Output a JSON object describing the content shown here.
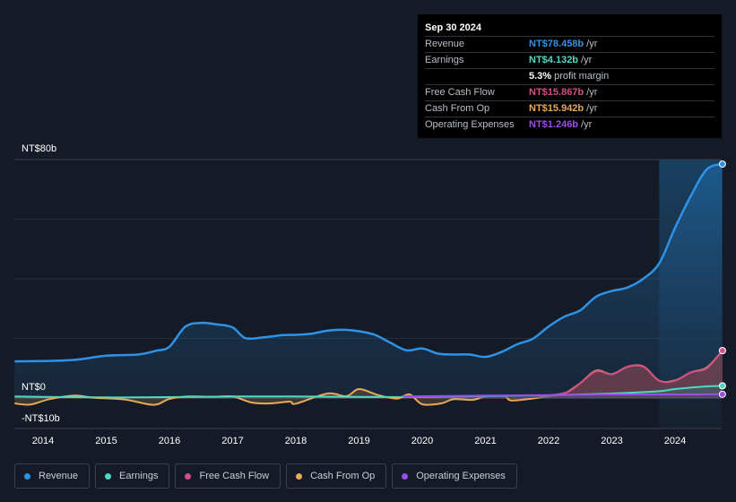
{
  "tooltip": {
    "date": "Sep 30 2024",
    "rows": [
      {
        "label": "Revenue",
        "value": "NT$78.458b",
        "unit": "/yr",
        "color": "#2e93e6"
      },
      {
        "label": "Earnings",
        "value": "NT$4.132b",
        "unit": "/yr",
        "color": "#4fd9c4"
      },
      {
        "label": "",
        "value": "5.3%",
        "unit": "profit margin",
        "color": "#ffffff"
      },
      {
        "label": "Free Cash Flow",
        "value": "NT$15.867b",
        "unit": "/yr",
        "color": "#d44f86"
      },
      {
        "label": "Cash From Op",
        "value": "NT$15.942b",
        "unit": "/yr",
        "color": "#e9a85a"
      },
      {
        "label": "Operating Expenses",
        "value": "NT$1.246b",
        "unit": "/yr",
        "color": "#9b4de8"
      }
    ]
  },
  "legend": [
    {
      "label": "Revenue",
      "color": "#2e93e6"
    },
    {
      "label": "Earnings",
      "color": "#4fd9c4"
    },
    {
      "label": "Free Cash Flow",
      "color": "#d44f86"
    },
    {
      "label": "Cash From Op",
      "color": "#e9a85a"
    },
    {
      "label": "Operating Expenses",
      "color": "#9b4de8"
    }
  ],
  "chart_data": {
    "type": "area",
    "title": "",
    "xlabel": "",
    "ylabel": "",
    "x_ticks": [
      "2014",
      "2015",
      "2016",
      "2017",
      "2018",
      "2019",
      "2020",
      "2021",
      "2022",
      "2023",
      "2024"
    ],
    "y_ticks": [
      {
        "value": 80,
        "label": "NT$80b"
      },
      {
        "value": 0,
        "label": "NT$0"
      },
      {
        "value": -10,
        "label": "-NT$10b"
      }
    ],
    "xlim": [
      2013.55,
      2024.75
    ],
    "ylim": [
      -10,
      80
    ],
    "forecast_start": 2023.75,
    "series": [
      {
        "name": "Revenue",
        "color": "#2e93e6",
        "points": [
          [
            2013.55,
            12.3
          ],
          [
            2014.0,
            12.4
          ],
          [
            2014.5,
            12.8
          ],
          [
            2015.0,
            14.2
          ],
          [
            2015.5,
            14.6
          ],
          [
            2015.8,
            15.9
          ],
          [
            2016.0,
            17.2
          ],
          [
            2016.25,
            23.9
          ],
          [
            2016.5,
            25.2
          ],
          [
            2016.75,
            24.7
          ],
          [
            2017.0,
            23.7
          ],
          [
            2017.2,
            20.1
          ],
          [
            2017.5,
            20.4
          ],
          [
            2017.8,
            21.1
          ],
          [
            2018.0,
            21.2
          ],
          [
            2018.25,
            21.6
          ],
          [
            2018.5,
            22.6
          ],
          [
            2018.75,
            22.9
          ],
          [
            2019.0,
            22.4
          ],
          [
            2019.25,
            21.2
          ],
          [
            2019.5,
            18.5
          ],
          [
            2019.75,
            16.0
          ],
          [
            2020.0,
            16.6
          ],
          [
            2020.25,
            14.9
          ],
          [
            2020.5,
            14.6
          ],
          [
            2020.75,
            14.6
          ],
          [
            2021.0,
            13.8
          ],
          [
            2021.25,
            15.4
          ],
          [
            2021.5,
            18.0
          ],
          [
            2021.75,
            19.9
          ],
          [
            2022.0,
            24.0
          ],
          [
            2022.25,
            27.3
          ],
          [
            2022.5,
            29.4
          ],
          [
            2022.75,
            34.0
          ],
          [
            2023.0,
            35.9
          ],
          [
            2023.25,
            37.1
          ],
          [
            2023.5,
            40.1
          ],
          [
            2023.75,
            45.2
          ],
          [
            2024.0,
            57.1
          ],
          [
            2024.25,
            67.8
          ],
          [
            2024.5,
            76.7
          ],
          [
            2024.75,
            78.5
          ]
        ]
      },
      {
        "name": "Earnings",
        "color": "#4fd9c4",
        "points": [
          [
            2013.55,
            0.5
          ],
          [
            2014.0,
            0.4
          ],
          [
            2015.0,
            0.2
          ],
          [
            2016.0,
            0.3
          ],
          [
            2017.0,
            0.5
          ],
          [
            2018.0,
            0.5
          ],
          [
            2019.0,
            0.4
          ],
          [
            2020.0,
            0.3
          ],
          [
            2021.0,
            0.6
          ],
          [
            2022.0,
            0.9
          ],
          [
            2023.0,
            1.5
          ],
          [
            2023.75,
            2.3
          ],
          [
            2024.0,
            3.0
          ],
          [
            2024.5,
            3.9
          ],
          [
            2024.75,
            4.1
          ]
        ]
      },
      {
        "name": "Free Cash Flow",
        "color": "#d44f86",
        "points": [
          [
            2022.0,
            0.8
          ],
          [
            2022.3,
            2.0
          ],
          [
            2022.5,
            5.0
          ],
          [
            2022.75,
            9.0
          ],
          [
            2023.0,
            8.0
          ],
          [
            2023.25,
            10.5
          ],
          [
            2023.5,
            10.5
          ],
          [
            2023.75,
            5.8
          ],
          [
            2024.0,
            5.8
          ],
          [
            2024.25,
            8.6
          ],
          [
            2024.5,
            10.0
          ],
          [
            2024.75,
            15.9
          ]
        ]
      },
      {
        "name": "Cash From Op",
        "color": "#e9a85a",
        "points": [
          [
            2013.55,
            -1.8
          ],
          [
            2013.8,
            -2.2
          ],
          [
            2014.1,
            -0.4
          ],
          [
            2014.5,
            0.8
          ],
          [
            2014.8,
            0.1
          ],
          [
            2015.3,
            -0.5
          ],
          [
            2015.75,
            -2.3
          ],
          [
            2016.0,
            -0.3
          ],
          [
            2016.3,
            0.5
          ],
          [
            2016.7,
            0.4
          ],
          [
            2017.0,
            0.5
          ],
          [
            2017.3,
            -1.5
          ],
          [
            2017.6,
            -1.8
          ],
          [
            2017.9,
            -1.2
          ],
          [
            2018.0,
            -1.9
          ],
          [
            2018.5,
            1.5
          ],
          [
            2018.8,
            0.6
          ],
          [
            2019.0,
            3.0
          ],
          [
            2019.3,
            1.0
          ],
          [
            2019.6,
            -0.2
          ],
          [
            2019.8,
            1.2
          ],
          [
            2020.0,
            -2.1
          ],
          [
            2020.3,
            -1.8
          ],
          [
            2020.5,
            -0.4
          ],
          [
            2020.8,
            -0.6
          ],
          [
            2021.0,
            0.5
          ],
          [
            2021.3,
            0.6
          ],
          [
            2021.4,
            -0.8
          ],
          [
            2021.7,
            -0.3
          ],
          [
            2022.0,
            0.6
          ],
          [
            2022.25,
            1.5
          ],
          [
            2022.5,
            5.0
          ],
          [
            2022.75,
            9.2
          ],
          [
            2023.0,
            8.0
          ],
          [
            2023.25,
            10.5
          ],
          [
            2023.5,
            10.6
          ],
          [
            2023.75,
            5.8
          ],
          [
            2024.0,
            5.9
          ],
          [
            2024.25,
            8.6
          ],
          [
            2024.5,
            10.2
          ],
          [
            2024.75,
            15.9
          ]
        ]
      },
      {
        "name": "Operating Expenses",
        "color": "#9b4de8",
        "points": [
          [
            2019.7,
            0.5
          ],
          [
            2020.0,
            0.6
          ],
          [
            2021.0,
            0.8
          ],
          [
            2022.0,
            1.0
          ],
          [
            2023.0,
            1.2
          ],
          [
            2024.0,
            1.2
          ],
          [
            2024.75,
            1.25
          ]
        ]
      }
    ]
  }
}
